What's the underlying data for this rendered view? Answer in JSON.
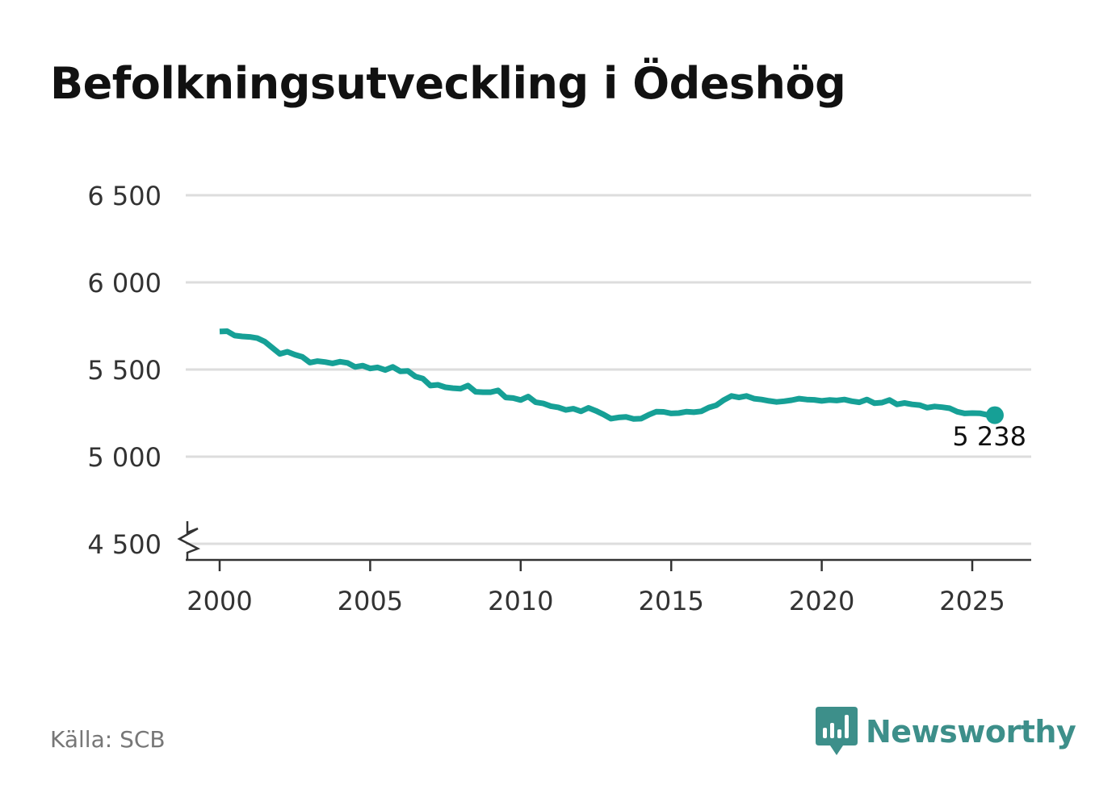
{
  "title": "Befolkningsutveckling i Ödeshög",
  "source": "Källa: SCB",
  "brand": "Newsworthy",
  "colors": {
    "line": "#16a096",
    "grid": "#dddddd",
    "axis": "#333333",
    "brand": "#3d8f8a"
  },
  "icons": {
    "brand_logo": "bar-chart-speech-bubble-icon"
  },
  "chart_data": {
    "type": "line",
    "title": "Befolkningsutveckling i Ödeshög",
    "xlabel": "",
    "ylabel": "",
    "xlim": [
      1999.5,
      2027
    ],
    "ylim": [
      4400,
      6550
    ],
    "axis_break": true,
    "grid": true,
    "yticks": [
      4500,
      5000,
      5500,
      6000,
      6500
    ],
    "ytick_labels": [
      "4 500",
      "5 000",
      "5 500",
      "6 000",
      "6 500"
    ],
    "xticks": [
      2000,
      2005,
      2010,
      2015,
      2020,
      2025
    ],
    "xtick_labels": [
      "2000",
      "2005",
      "2010",
      "2015",
      "2020",
      "2025"
    ],
    "end_label": "5 238",
    "series": [
      {
        "x": [
          2000.0,
          2000.25,
          2000.5,
          2000.75,
          2001.0,
          2001.25,
          2001.5,
          2001.75,
          2002.0,
          2002.25,
          2002.5,
          2002.75,
          2003.0,
          2003.25,
          2003.5,
          2003.75,
          2004.0,
          2004.25,
          2004.5,
          2004.75,
          2005.0,
          2005.25,
          2005.5,
          2005.75,
          2006.0,
          2006.25,
          2006.5,
          2006.75,
          2007.0,
          2007.25,
          2007.5,
          2007.75,
          2008.0,
          2008.25,
          2008.5,
          2008.75,
          2009.0,
          2009.25,
          2009.5,
          2009.75,
          2010.0,
          2010.25,
          2010.5,
          2010.75,
          2011.0,
          2011.25,
          2011.5,
          2011.75,
          2012.0,
          2012.25,
          2012.5,
          2012.75,
          2013.0,
          2013.25,
          2013.5,
          2013.75,
          2014.0,
          2014.25,
          2014.5,
          2014.75,
          2015.0,
          2015.25,
          2015.5,
          2015.75,
          2016.0,
          2016.25,
          2016.5,
          2016.75,
          2017.0,
          2017.25,
          2017.5,
          2017.75,
          2018.0,
          2018.25,
          2018.5,
          2018.75,
          2019.0,
          2019.25,
          2019.5,
          2019.75,
          2020.0,
          2020.25,
          2020.5,
          2020.75,
          2021.0,
          2021.25,
          2021.5,
          2021.75,
          2022.0,
          2022.25,
          2022.5,
          2022.75,
          2023.0,
          2023.25,
          2023.5,
          2023.75,
          2024.0,
          2024.25,
          2024.5,
          2024.75,
          2025.0,
          2025.25,
          2025.5,
          2025.75
        ],
        "y": [
          5718,
          5720,
          5695,
          5690,
          5687,
          5680,
          5660,
          5625,
          5590,
          5602,
          5585,
          5572,
          5540,
          5548,
          5543,
          5535,
          5545,
          5538,
          5515,
          5522,
          5506,
          5512,
          5497,
          5515,
          5490,
          5492,
          5460,
          5448,
          5408,
          5412,
          5398,
          5393,
          5390,
          5408,
          5372,
          5370,
          5370,
          5380,
          5340,
          5336,
          5325,
          5345,
          5312,
          5305,
          5290,
          5283,
          5268,
          5275,
          5260,
          5280,
          5263,
          5242,
          5218,
          5225,
          5228,
          5216,
          5218,
          5240,
          5258,
          5257,
          5248,
          5250,
          5258,
          5255,
          5260,
          5282,
          5295,
          5325,
          5348,
          5340,
          5348,
          5333,
          5328,
          5320,
          5314,
          5318,
          5324,
          5333,
          5328,
          5326,
          5320,
          5325,
          5322,
          5328,
          5318,
          5312,
          5328,
          5307,
          5310,
          5325,
          5300,
          5308,
          5300,
          5296,
          5281,
          5288,
          5284,
          5278,
          5258,
          5248,
          5250,
          5249,
          5240,
          5238
        ]
      }
    ]
  }
}
